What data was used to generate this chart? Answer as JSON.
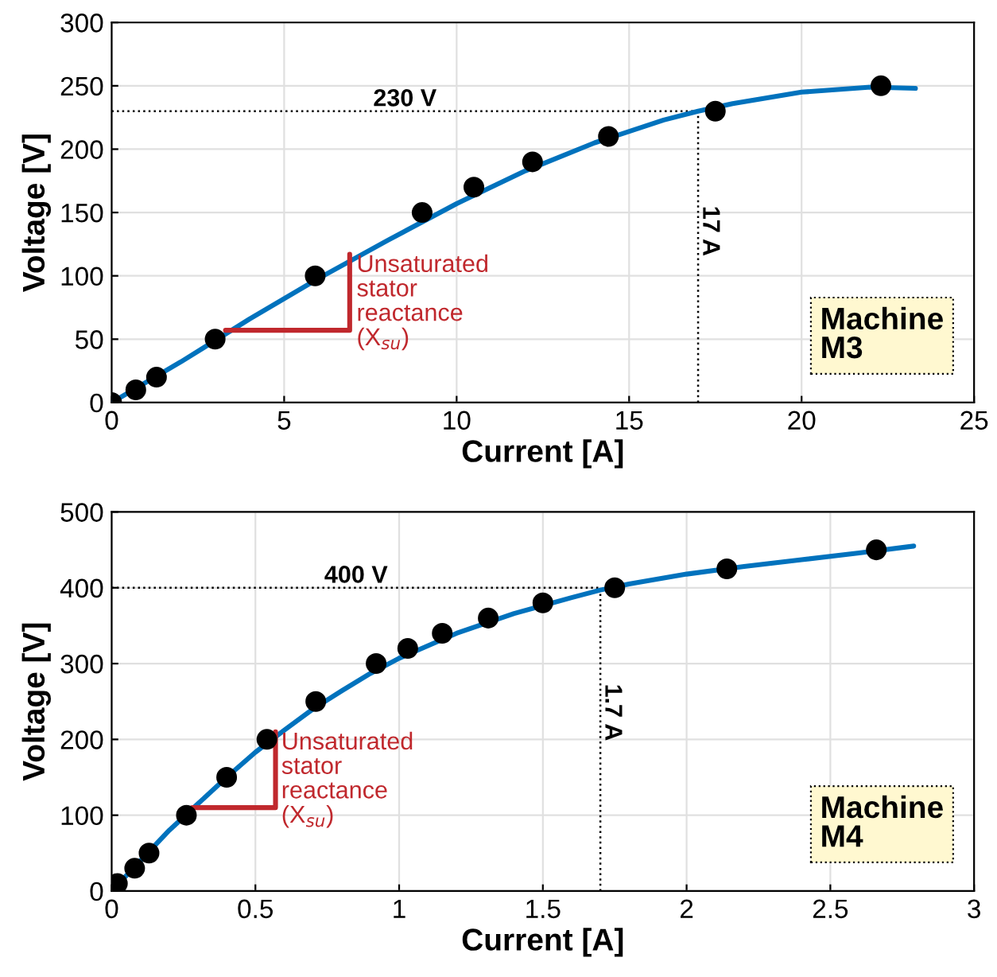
{
  "chart_data": [
    {
      "type": "scatter",
      "xlabel": "Current [A]",
      "ylabel": "Voltage [V]",
      "xlim": [
        0,
        25
      ],
      "ylim": [
        0,
        300
      ],
      "xticks": [
        0,
        5,
        10,
        15,
        20,
        25
      ],
      "yticks": [
        0,
        50,
        100,
        150,
        200,
        250,
        300
      ],
      "grid": true,
      "series": [
        {
          "type": "line",
          "color": "#0072bd",
          "marker": "none",
          "x": [
            0,
            2,
            4,
            6,
            8,
            10,
            12,
            14,
            16,
            17,
            18,
            20,
            22,
            23.3
          ],
          "values": [
            0,
            32,
            66,
            98,
            128,
            157,
            183,
            205,
            223,
            230,
            236,
            245,
            249,
            248
          ]
        },
        {
          "color": "#000000",
          "marker": "circle",
          "x": [
            0,
            0.7,
            1.3,
            3,
            5.9,
            9,
            10.5,
            12.2,
            14.4,
            17.5,
            22.3
          ],
          "values": [
            0,
            10,
            20,
            50,
            100,
            150,
            170,
            190,
            210,
            230,
            250
          ]
        },
        {
          "type": "line",
          "color": "#c0282d",
          "marker": "none",
          "x": [
            3.3,
            6.9,
            6.9
          ],
          "values": [
            57,
            57,
            117
          ]
        }
      ],
      "ref_lines": [
        {
          "axis": "y",
          "value": 230,
          "label": "230 V",
          "line_style": "dotted",
          "color": "#000000"
        },
        {
          "axis": "x",
          "value": 17,
          "label": "17 A",
          "line_style": "dotted",
          "color": "#000000"
        }
      ],
      "annotations": [
        {
          "text": "Unsaturated\nstator\nreactance\n(X$_{su}$)",
          "x": 7.1,
          "y": 117
        },
        "Machine\nM3"
      ]
    },
    {
      "type": "scatter",
      "xlabel": "Current [A]",
      "ylabel": "Voltage [V]",
      "xlim": [
        0,
        3
      ],
      "ylim": [
        0,
        500
      ],
      "xticks": [
        0,
        0.5,
        1,
        1.5,
        2,
        2.5,
        3
      ],
      "yticks": [
        0,
        100,
        200,
        300,
        400,
        500
      ],
      "grid": true,
      "series": [
        {
          "type": "line",
          "color": "#0072bd",
          "marker": "none",
          "x": [
            0.02,
            0.1,
            0.2,
            0.3,
            0.4,
            0.5,
            0.6,
            0.7,
            0.8,
            0.9,
            1.0,
            1.2,
            1.4,
            1.6,
            1.7,
            1.8,
            2.0,
            2.2,
            2.4,
            2.6,
            2.79
          ],
          "values": [
            8,
            40,
            80,
            115,
            150,
            183,
            212,
            240,
            264,
            287,
            307,
            340,
            366,
            387,
            397,
            405,
            418,
            428,
            437,
            446,
            455
          ]
        },
        {
          "color": "#000000",
          "marker": "circle",
          "x": [
            0.02,
            0.08,
            0.13,
            0.26,
            0.4,
            0.54,
            0.71,
            0.92,
            1.03,
            1.15,
            1.31,
            1.5,
            1.75,
            2.14,
            2.66
          ],
          "values": [
            10,
            30,
            50,
            100,
            150,
            200,
            250,
            300,
            320,
            340,
            360,
            380,
            400,
            425,
            450
          ]
        },
        {
          "type": "line",
          "color": "#c0282d",
          "marker": "none",
          "x": [
            0.28,
            0.57,
            0.57
          ],
          "values": [
            110,
            110,
            210
          ]
        }
      ],
      "ref_lines": [
        {
          "axis": "y",
          "value": 400,
          "label": "400 V",
          "line_style": "dotted",
          "color": "#000000"
        },
        {
          "axis": "x",
          "value": 1.7,
          "label": "1.7 A",
          "line_style": "dotted",
          "color": "#000000"
        }
      ],
      "annotations": [
        {
          "text": "Unsaturated\nstator\nreactance\n(X$_{su}$)",
          "x": 0.59,
          "y": 210
        },
        "Machine\nM4"
      ]
    }
  ]
}
